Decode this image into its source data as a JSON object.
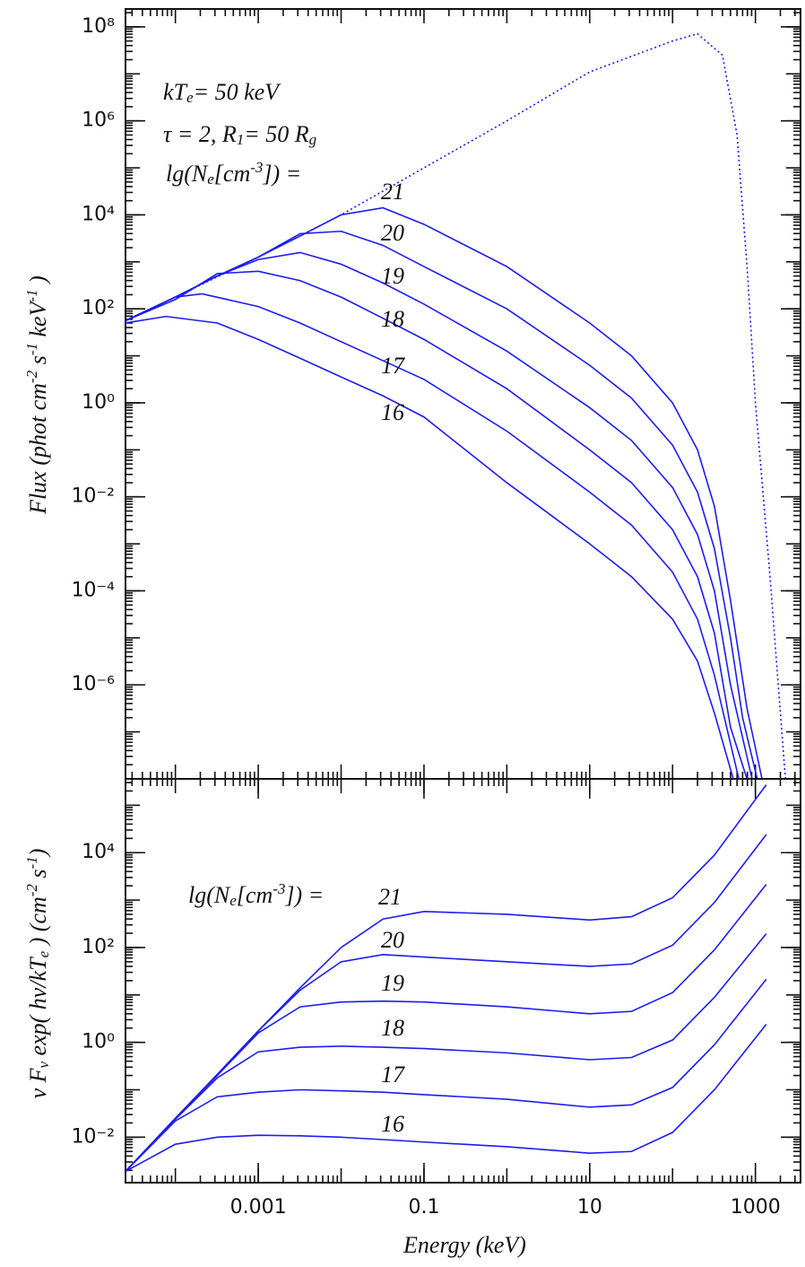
{
  "chart_data": [
    {
      "type": "line",
      "xscale": "log",
      "yscale": "log",
      "color": "#1c1cf0",
      "xlim": [
        2.5e-05,
        3500
      ],
      "ylim": [
        1e-08,
        240000000.0
      ],
      "yticks": [
        {
          "value": 100000000.0,
          "label": "10⁸"
        },
        {
          "value": 1000000.0,
          "label": "10⁶"
        },
        {
          "value": 10000.0,
          "label": "10⁴"
        },
        {
          "value": 100,
          "label": "10²"
        },
        {
          "value": 1,
          "label": "10⁰"
        },
        {
          "value": 0.01,
          "label": "10⁻²"
        },
        {
          "value": 0.0001,
          "label": "10⁻⁴"
        },
        {
          "value": 1e-06,
          "label": "10⁻⁶"
        }
      ],
      "ylabel": [
        {
          "text": "Flux  (phot cm"
        },
        {
          "text": "-2",
          "sup": true
        },
        {
          "text": " s"
        },
        {
          "text": "-1",
          "sup": true
        },
        {
          "text": " keV"
        },
        {
          "text": "-1",
          "sup": true
        },
        {
          "text": " )"
        }
      ],
      "annotations": [
        [
          {
            "text": "kT"
          },
          {
            "text": "e",
            "sub": true
          },
          {
            "text": "= 50  keV"
          }
        ],
        [
          {
            "text": "τ = 2,  R"
          },
          {
            "text": "1",
            "sub": true
          },
          {
            "text": "= 50 R"
          },
          {
            "text": "g",
            "sub": true
          }
        ],
        [
          {
            "text": "lg(N"
          },
          {
            "text": "e",
            "sub": true
          },
          {
            "text": "[cm"
          },
          {
            "text": "-3",
            "sup": true
          },
          {
            "text": "]) ="
          }
        ]
      ],
      "series": [
        {
          "linestyle": "dotted",
          "x": [
            2.5e-05,
            0.0001,
            0.001,
            0.01,
            0.1,
            1,
            10,
            100,
            200,
            400,
            600,
            800,
            1000,
            1500,
            2300
          ],
          "values": [
            56,
            178,
            1260,
            10000.0,
            100000.0,
            1000000.0,
            11000000.0,
            50000000.0,
            71000000.0,
            25000000.0,
            500000.0,
            630,
            1,
            0.0002,
            1e-08
          ]
        },
        {
          "name": "21",
          "x": [
            2.5e-05,
            0.0001,
            0.00032,
            0.001,
            0.0032,
            0.01,
            0.032,
            0.1,
            1,
            10,
            32,
            100,
            200,
            320,
            500,
            790,
            1200
          ],
          "values": [
            56,
            178,
            500,
            1260,
            3550,
            10000,
            14100,
            6300,
            794,
            50,
            10,
            1,
            0.1,
            0.0063,
            6.3e-05,
            3.2e-07,
            1e-08
          ]
        },
        {
          "name": "20",
          "x": [
            2.5e-05,
            0.0001,
            0.00032,
            0.001,
            0.0032,
            0.01,
            0.032,
            0.1,
            1,
            10,
            32,
            100,
            200,
            320,
            500,
            700,
            1050
          ],
          "values": [
            56,
            178,
            500,
            1260,
            3980,
            4470,
            2240,
            794,
            100,
            6.3,
            1.26,
            0.126,
            0.0126,
            0.00079,
            1e-05,
            2e-07,
            1e-08
          ]
        },
        {
          "name": "19",
          "x": [
            2.5e-05,
            0.0001,
            0.00032,
            0.001,
            0.0032,
            0.01,
            0.032,
            0.1,
            1,
            10,
            32,
            100,
            200,
            320,
            500,
            910
          ],
          "values": [
            56,
            178,
            500,
            1120,
            1580,
            891,
            355,
            126,
            12.6,
            0.79,
            0.158,
            0.0158,
            0.00158,
            0.0001,
            1e-06,
            1e-08
          ]
        },
        {
          "name": "18",
          "x": [
            2.5e-05,
            0.0001,
            0.00032,
            0.001,
            0.0032,
            0.01,
            0.032,
            0.1,
            1,
            10,
            32,
            100,
            200,
            320,
            500,
            790
          ],
          "values": [
            56,
            158,
            562,
            631,
            398,
            178,
            63,
            22.4,
            2,
            0.1,
            0.02,
            0.002,
            0.0002,
            1.26e-05,
            1.26e-07,
            1e-08
          ]
        },
        {
          "name": "17",
          "x": [
            2.5e-05,
            0.0001,
            0.00021,
            0.001,
            0.0032,
            0.01,
            0.032,
            0.1,
            1,
            10,
            32,
            100,
            200,
            320,
            630
          ],
          "values": [
            56,
            178,
            209,
            112,
            50,
            20,
            7.9,
            3.16,
            0.25,
            0.0126,
            0.0025,
            0.00025,
            2.5e-05,
            1.6e-06,
            1e-08
          ]
        },
        {
          "name": "16",
          "x": [
            2.5e-05,
            7.7e-05,
            0.00032,
            0.001,
            0.0032,
            0.01,
            0.032,
            0.1,
            1,
            10,
            32,
            100,
            200,
            320,
            540
          ],
          "values": [
            50,
            69,
            50,
            22.4,
            8.9,
            3.55,
            1.41,
            0.5,
            0.02,
            0.001,
            0.0002,
            2.5e-05,
            3.2e-06,
            2.5e-07,
            1e-08
          ]
        }
      ]
    },
    {
      "type": "line",
      "xscale": "log",
      "yscale": "log",
      "color": "#1c1cf0",
      "xlim": [
        2.5e-05,
        3500
      ],
      "ylim": [
        0.0011,
        360000.0
      ],
      "xticks": [
        0.001,
        0.1,
        10,
        1000
      ],
      "xlabel": "Energy (keV)",
      "yticks": [
        {
          "value": 10000.0,
          "label": "10⁴"
        },
        {
          "value": 100,
          "label": "10²"
        },
        {
          "value": 1,
          "label": "10⁰"
        },
        {
          "value": 0.01,
          "label": "10⁻²"
        }
      ],
      "ylabel": [
        {
          "text": "ν F"
        },
        {
          "text": "ν",
          "sub": true
        },
        {
          "text": " exp( hν/kT"
        },
        {
          "text": "e",
          "sub": true
        },
        {
          "text": " )   (cm"
        },
        {
          "text": "-2",
          "sup": true
        },
        {
          "text": " s"
        },
        {
          "text": "-1",
          "sup": true
        },
        {
          "text": ")"
        }
      ],
      "annotations": [
        [
          {
            "text": "lg(N"
          },
          {
            "text": "e",
            "sub": true
          },
          {
            "text": "[cm"
          },
          {
            "text": "-3",
            "sup": true
          },
          {
            "text": "]) ="
          }
        ]
      ],
      "series": [
        {
          "name": "21",
          "x": [
            2.5e-05,
            0.0001,
            0.00032,
            0.001,
            0.0032,
            0.01,
            0.032,
            0.1,
            1,
            10,
            32,
            100,
            320,
            1350
          ],
          "values": [
            0.0019,
            0.025,
            0.21,
            1.74,
            14.1,
            100,
            398,
            575,
            501,
            380,
            447,
            1120,
            8900,
            270000
          ]
        },
        {
          "name": "20",
          "x": [
            2.5e-05,
            0.0001,
            0.00032,
            0.001,
            0.0032,
            0.01,
            0.032,
            0.1,
            1,
            10,
            32,
            100,
            320,
            1350
          ],
          "values": [
            0.0019,
            0.025,
            0.21,
            1.74,
            12.6,
            50,
            71,
            63,
            50,
            40,
            45,
            112,
            890,
            24000
          ]
        },
        {
          "name": "19",
          "x": [
            2.5e-05,
            0.0001,
            0.00032,
            0.001,
            0.0032,
            0.01,
            0.032,
            0.1,
            1,
            10,
            32,
            100,
            320,
            1350
          ],
          "values": [
            0.0019,
            0.025,
            0.2,
            1.58,
            5.6,
            7.1,
            7.4,
            7.1,
            5.6,
            4,
            4.5,
            11.2,
            89,
            2140
          ]
        },
        {
          "name": "18",
          "x": [
            2.5e-05,
            0.0001,
            0.00032,
            0.001,
            0.0032,
            0.01,
            0.032,
            0.1,
            1,
            10,
            32,
            100,
            320,
            1350
          ],
          "values": [
            0.0019,
            0.024,
            0.178,
            0.63,
            0.79,
            0.83,
            0.79,
            0.74,
            0.6,
            0.43,
            0.48,
            1.12,
            8.9,
            195
          ]
        },
        {
          "name": "17",
          "x": [
            2.5e-05,
            0.0001,
            0.00032,
            0.001,
            0.0032,
            0.01,
            0.032,
            0.1,
            1,
            10,
            32,
            100,
            320,
            1350
          ],
          "values": [
            0.0019,
            0.022,
            0.071,
            0.089,
            0.1,
            0.095,
            0.089,
            0.079,
            0.063,
            0.043,
            0.048,
            0.112,
            0.89,
            21.4
          ]
        },
        {
          "name": "16",
          "x": [
            2.5e-05,
            0.0001,
            0.00032,
            0.001,
            0.0032,
            0.01,
            0.032,
            0.1,
            1,
            10,
            32,
            100,
            320,
            1350
          ],
          "values": [
            0.0019,
            0.0071,
            0.01,
            0.011,
            0.0107,
            0.01,
            0.0089,
            0.0079,
            0.0063,
            0.0046,
            0.005,
            0.0126,
            0.1,
            2.4
          ]
        }
      ]
    }
  ]
}
